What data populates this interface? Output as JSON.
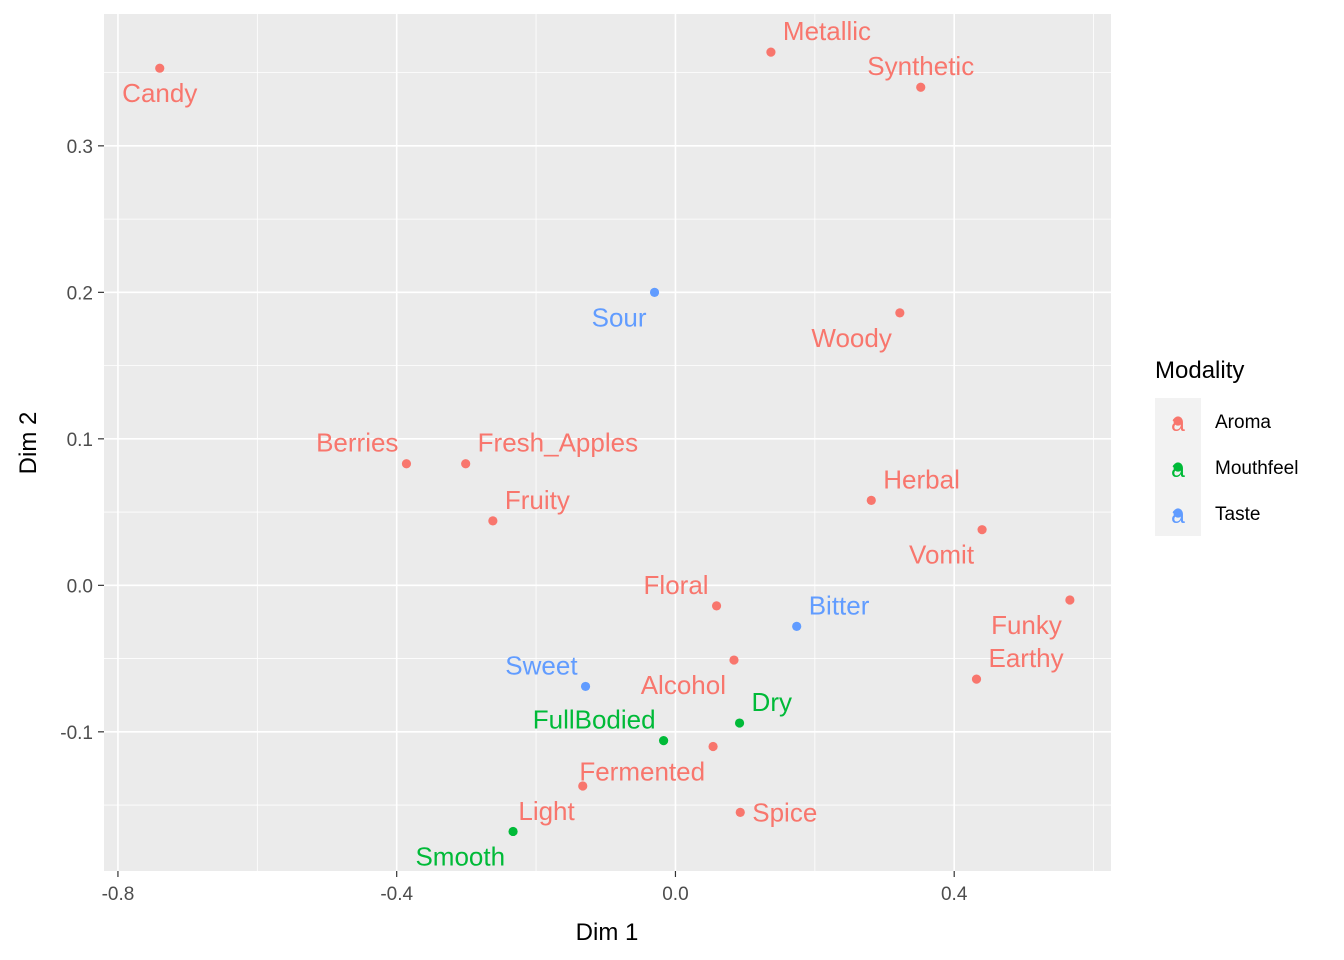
{
  "chart_data": {
    "type": "scatter",
    "xlabel": "Dim 1",
    "ylabel": "Dim 2",
    "xlim": [
      -0.82,
      0.625
    ],
    "ylim": [
      -0.195,
      0.39
    ],
    "x_ticks": [
      -0.8,
      -0.4,
      0.0,
      0.4
    ],
    "x_tick_labels": [
      "-0.8",
      "-0.4",
      "0.0",
      "0.4"
    ],
    "y_ticks": [
      -0.1,
      0.0,
      0.1,
      0.2,
      0.3
    ],
    "y_tick_labels": [
      "-0.1",
      "0.0",
      "0.1",
      "0.2",
      "0.3"
    ],
    "grid": true,
    "legend": {
      "title": "Modality",
      "placement": "right",
      "entries": [
        {
          "name": "Aroma",
          "color": "#F8766D",
          "glyph": "a"
        },
        {
          "name": "Mouthfeel",
          "color": "#00BA38",
          "glyph": "a"
        },
        {
          "name": "Taste",
          "color": "#619CFF",
          "glyph": "a"
        }
      ]
    },
    "points": [
      {
        "label": "Candy",
        "x": -0.74,
        "y": 0.353,
        "group": "Aroma",
        "label_pos": "below"
      },
      {
        "label": "Metallic",
        "x": 0.137,
        "y": 0.364,
        "group": "Aroma",
        "label_pos": "above-right"
      },
      {
        "label": "Synthetic",
        "x": 0.352,
        "y": 0.34,
        "group": "Aroma",
        "label_pos": "above"
      },
      {
        "label": "Sour",
        "x": -0.03,
        "y": 0.2,
        "group": "Taste",
        "label_pos": "below-left"
      },
      {
        "label": "Woody",
        "x": 0.322,
        "y": 0.186,
        "group": "Aroma",
        "label_pos": "below-left"
      },
      {
        "label": "Berries",
        "x": -0.386,
        "y": 0.083,
        "group": "Aroma",
        "label_pos": "above-left"
      },
      {
        "label": "Fresh_Apples",
        "x": -0.301,
        "y": 0.083,
        "group": "Aroma",
        "label_pos": "above-right"
      },
      {
        "label": "Fruity",
        "x": -0.262,
        "y": 0.044,
        "group": "Aroma",
        "label_pos": "above-right"
      },
      {
        "label": "Herbal",
        "x": 0.281,
        "y": 0.058,
        "group": "Aroma",
        "label_pos": "above-right"
      },
      {
        "label": "Vomit",
        "x": 0.44,
        "y": 0.038,
        "group": "Aroma",
        "label_pos": "below-left"
      },
      {
        "label": "Floral",
        "x": 0.059,
        "y": -0.014,
        "group": "Aroma",
        "label_pos": "above-left"
      },
      {
        "label": "Bitter",
        "x": 0.174,
        "y": -0.028,
        "group": "Taste",
        "label_pos": "above-right"
      },
      {
        "label": "Funky",
        "x": 0.566,
        "y": -0.01,
        "group": "Aroma",
        "label_pos": "below-left"
      },
      {
        "label": "Earthy",
        "x": 0.432,
        "y": -0.064,
        "group": "Aroma",
        "label_pos": "above-right"
      },
      {
        "label": "Sweet",
        "x": -0.129,
        "y": -0.069,
        "group": "Taste",
        "label_pos": "above-left"
      },
      {
        "label": "Alcohol",
        "x": 0.084,
        "y": -0.051,
        "group": "Aroma",
        "label_pos": "below-left"
      },
      {
        "label": "Dry",
        "x": 0.092,
        "y": -0.094,
        "group": "Mouthfeel",
        "label_pos": "above-right"
      },
      {
        "label": "FullBodied",
        "x": -0.017,
        "y": -0.106,
        "group": "Mouthfeel",
        "label_pos": "above-left"
      },
      {
        "label": "Fermented",
        "x": 0.054,
        "y": -0.11,
        "group": "Aroma",
        "label_pos": "below-left"
      },
      {
        "label": "Light",
        "x": -0.133,
        "y": -0.137,
        "group": "Aroma",
        "label_pos": "below-left"
      },
      {
        "label": "Spice",
        "x": 0.093,
        "y": -0.155,
        "group": "Aroma",
        "label_pos": "right"
      },
      {
        "label": "Smooth",
        "x": -0.233,
        "y": -0.168,
        "group": "Mouthfeel",
        "label_pos": "below-left"
      }
    ]
  }
}
